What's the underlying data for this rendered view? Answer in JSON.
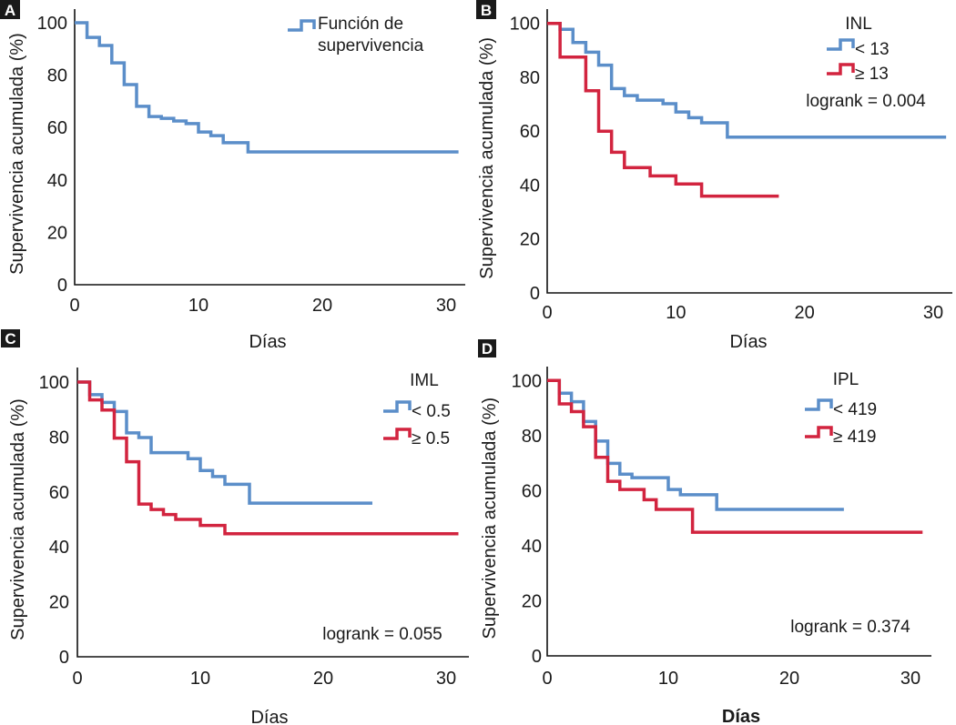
{
  "colors": {
    "blue": "#5b8ec9",
    "red": "#d2243f"
  },
  "chart_data": [
    {
      "panel": "A",
      "type": "line",
      "step": true,
      "title": "",
      "xlabel": "Días",
      "ylabel": "Supervivencia acumulada (%)",
      "xlim": [
        0,
        31
      ],
      "ylim": [
        0,
        100
      ],
      "xticks": [
        0,
        10,
        20,
        30
      ],
      "yticks": [
        0,
        20,
        40,
        60,
        80,
        100
      ],
      "grid": false,
      "legend_position": "top-right",
      "legend_title": "",
      "annotation": "",
      "series": [
        {
          "name": "Función de supervivencia",
          "color": "blue",
          "x": [
            0,
            1,
            2,
            3,
            4,
            5,
            6,
            7,
            8,
            9,
            10,
            11,
            12,
            14,
            31
          ],
          "y": [
            100,
            94.4,
            91.3,
            84.7,
            76.4,
            68.1,
            64.2,
            63.5,
            62.5,
            61.5,
            58.3,
            56.9,
            54.2,
            50.7,
            50.7
          ]
        }
      ]
    },
    {
      "panel": "B",
      "type": "line",
      "step": true,
      "title": "",
      "xlabel": "Días",
      "ylabel": "Supervivencia acumulada (%)",
      "xlim": [
        0,
        31
      ],
      "ylim": [
        0,
        100
      ],
      "xticks": [
        0,
        10,
        20,
        30
      ],
      "yticks": [
        0,
        20,
        40,
        60,
        80,
        100
      ],
      "grid": false,
      "legend_position": "top-right",
      "legend_title": "INL",
      "annotation": "logrank = 0.004",
      "series": [
        {
          "name": "< 13",
          "color": "blue",
          "x": [
            0,
            1,
            2,
            3,
            4,
            5,
            6,
            7,
            9,
            10,
            11,
            12,
            14,
            31
          ],
          "y": [
            100,
            97.8,
            92.9,
            89.3,
            84.5,
            75.8,
            73.2,
            71.5,
            70.2,
            67.1,
            65.0,
            63.1,
            57.8,
            57.8
          ]
        },
        {
          "name": "≥ 13",
          "color": "red",
          "x": [
            0,
            1,
            3,
            4,
            5,
            6,
            8,
            10,
            12,
            18
          ],
          "y": [
            100,
            87.5,
            75,
            60,
            52.2,
            46.5,
            43.4,
            40.4,
            35.9,
            35.9
          ]
        }
      ]
    },
    {
      "panel": "C",
      "type": "line",
      "step": true,
      "title": "",
      "xlabel": "Días",
      "ylabel": "Supervivencia acumulada (%)",
      "xlim": [
        0,
        31
      ],
      "ylim": [
        0,
        100
      ],
      "xticks": [
        0,
        10,
        20,
        30
      ],
      "yticks": [
        0,
        20,
        40,
        60,
        80,
        100
      ],
      "grid": false,
      "legend_position": "top-right",
      "legend_title": "IML",
      "annotation": "logrank = 0.055",
      "series": [
        {
          "name": "< 0.5",
          "color": "blue",
          "x": [
            0,
            1,
            2,
            3,
            4,
            5,
            6,
            9,
            10,
            11,
            12,
            14,
            24
          ],
          "y": [
            100,
            95.4,
            92.6,
            89.3,
            81.5,
            79.8,
            74.3,
            72.1,
            67.8,
            65.6,
            62.8,
            55.9,
            55.9
          ]
        },
        {
          "name": "≥ 0.5",
          "color": "red",
          "x": [
            0,
            1,
            2,
            3,
            4,
            5,
            6,
            7,
            8,
            10,
            12,
            31
          ],
          "y": [
            100,
            93.5,
            89.8,
            79.6,
            71.0,
            55.6,
            53.6,
            51.8,
            50.0,
            47.8,
            44.8,
            44.8
          ]
        }
      ]
    },
    {
      "panel": "D",
      "type": "line",
      "step": true,
      "title": "",
      "xlabel": "Días",
      "ylabel": "Supervivencia acumulada (%)",
      "xlim": [
        0,
        31
      ],
      "ylim": [
        0,
        100
      ],
      "xticks": [
        0,
        10,
        20,
        30
      ],
      "yticks": [
        0,
        20,
        40,
        60,
        80,
        100
      ],
      "grid": false,
      "legend_position": "top-right",
      "legend_title": "IPL",
      "annotation": "logrank = 0.374",
      "series": [
        {
          "name": "< 419",
          "color": "blue",
          "x": [
            0,
            1,
            2,
            3,
            4,
            5,
            6,
            7,
            10,
            11,
            14,
            24.5
          ],
          "y": [
            100,
            95.4,
            92.3,
            85.1,
            78.0,
            69.9,
            66.0,
            64.7,
            60.4,
            58.5,
            53.2,
            53.2
          ]
        },
        {
          "name": "≥ 419",
          "color": "red",
          "x": [
            0,
            1,
            2,
            3,
            4,
            5,
            6,
            8,
            9,
            12,
            31
          ],
          "y": [
            100,
            91.5,
            88.7,
            83.2,
            72.1,
            63.4,
            60.4,
            56.7,
            53.2,
            44.9,
            44.9
          ]
        }
      ]
    }
  ]
}
